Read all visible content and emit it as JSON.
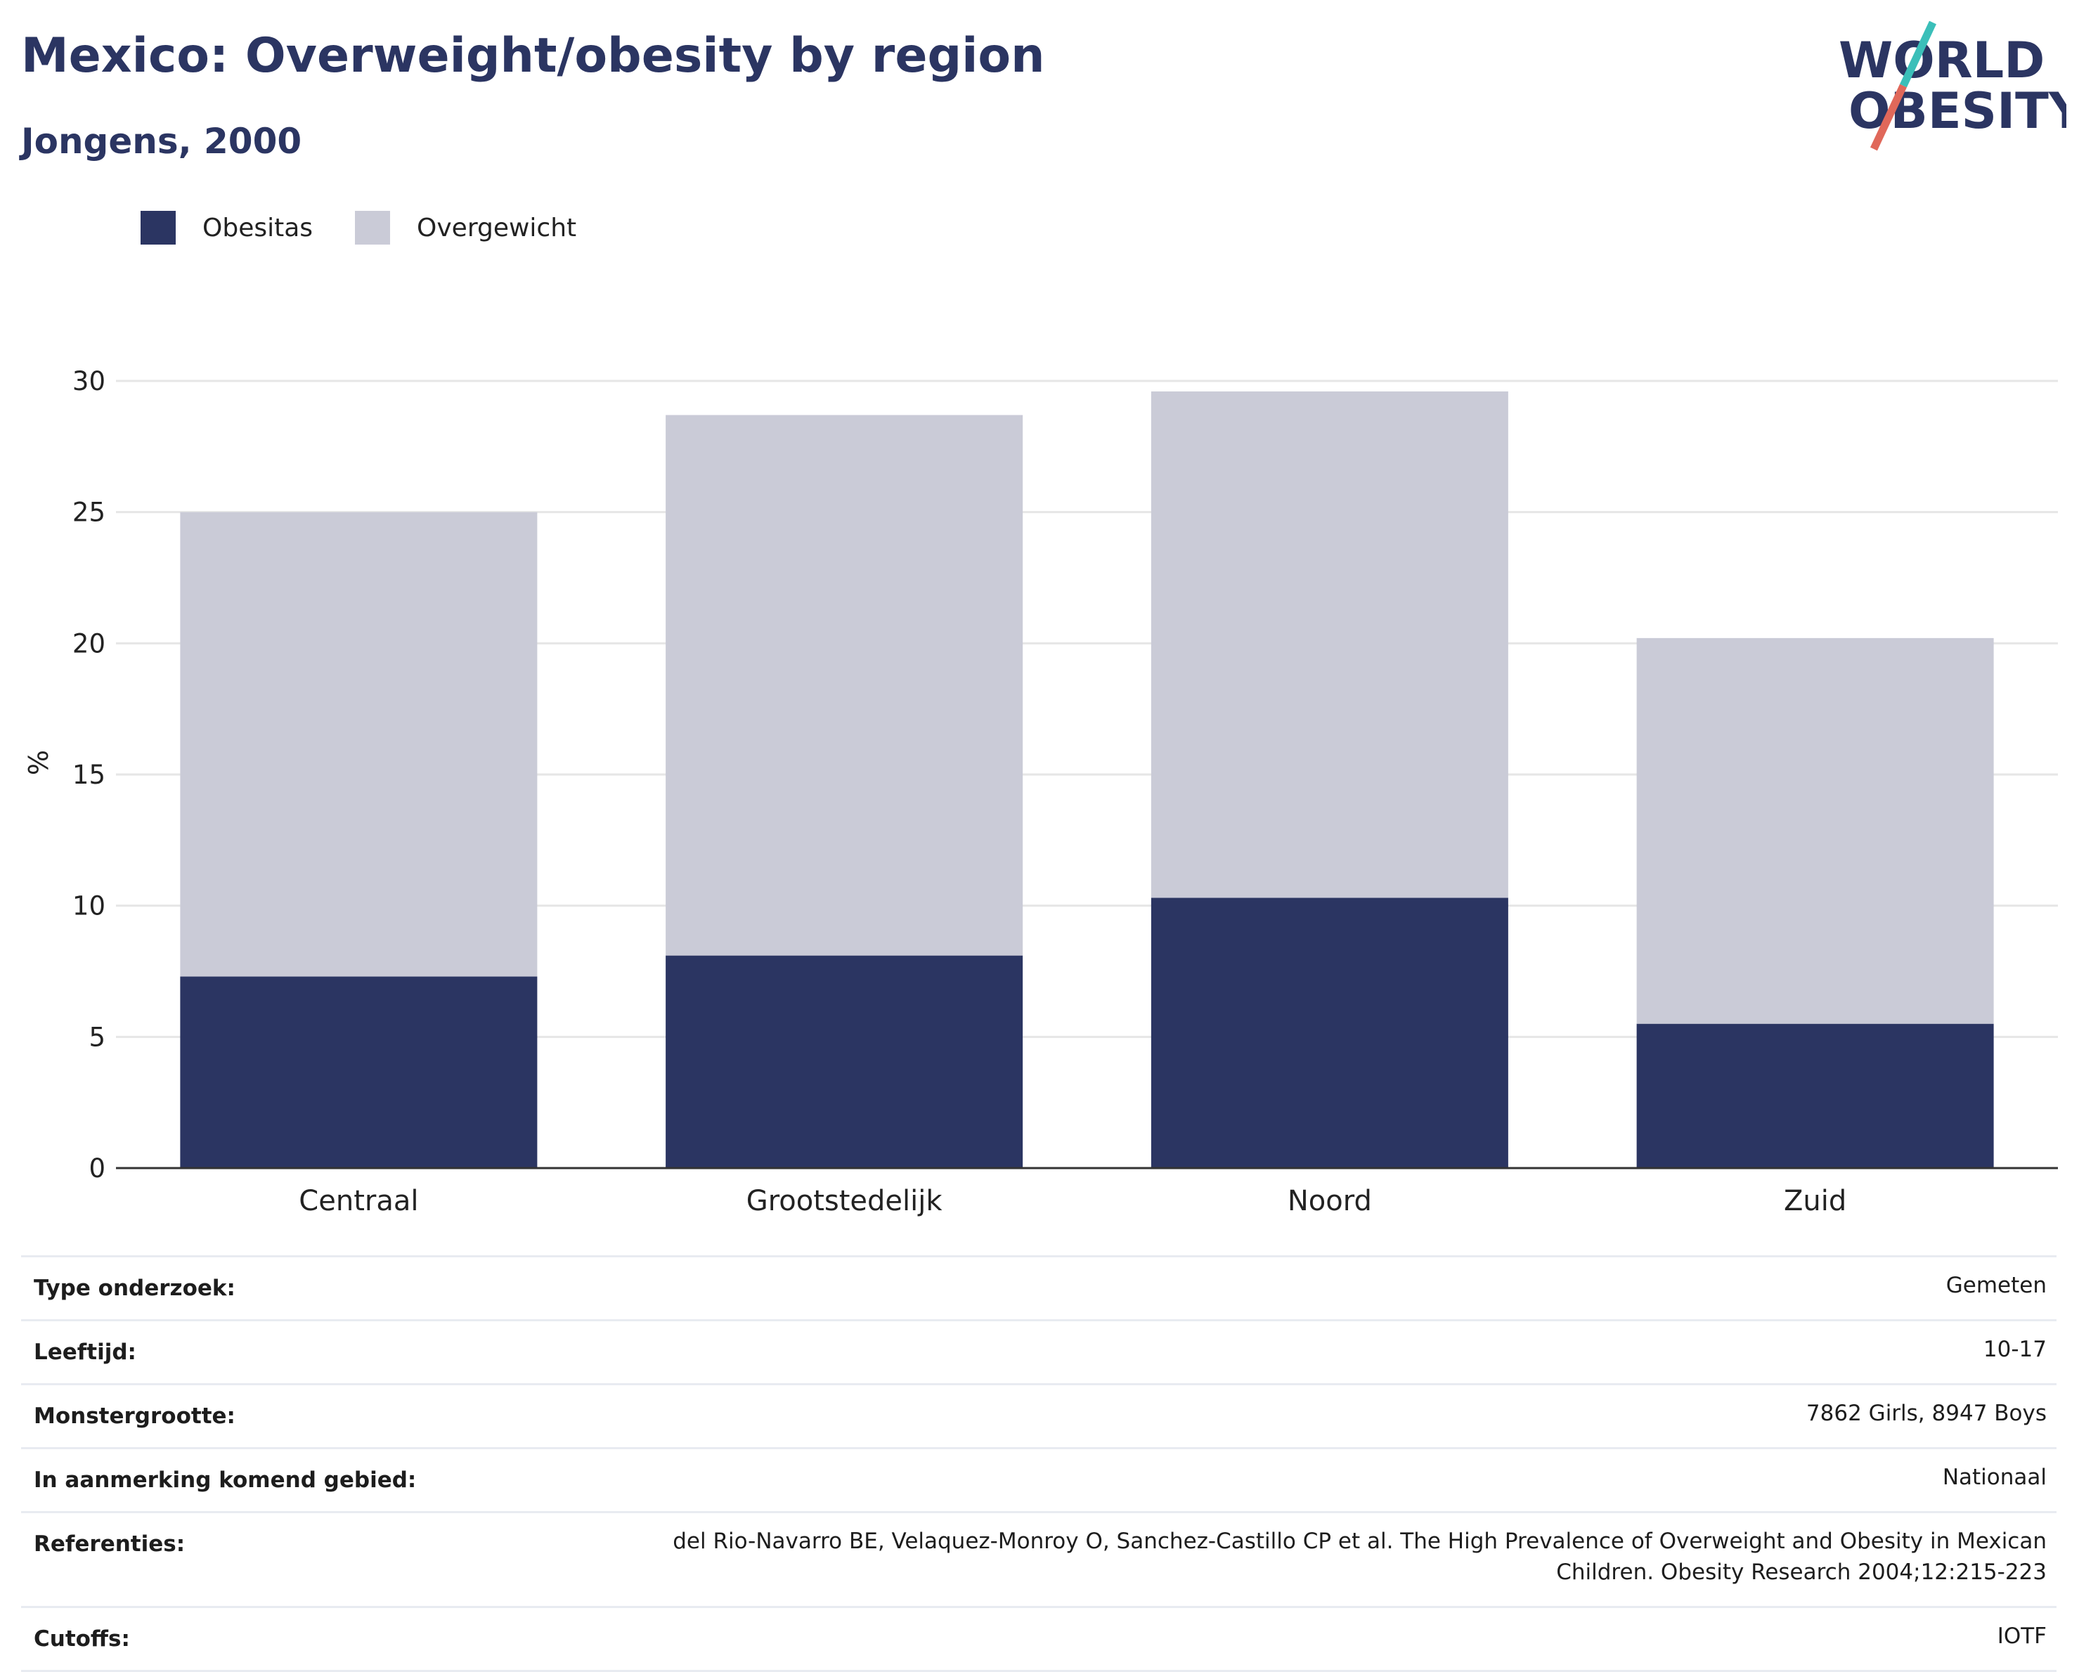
{
  "header": {
    "title": "Mexico: Overweight/obesity by region",
    "subtitle": "Jongens, 2000"
  },
  "logo": {
    "line1": "WORLD",
    "line2": "OBESITY",
    "colors": {
      "text": "#2b3562",
      "slash_top": "#3bbfb9",
      "slash_bottom": "#e0685a"
    }
  },
  "colors": {
    "obesity": "#2b3562",
    "overweight": "#cacbd7",
    "grid": "#e6e6e6",
    "axis": "#333333"
  },
  "chart_data": {
    "type": "bar",
    "stacked": true,
    "categories": [
      "Centraal",
      "Grootstedelijk",
      "Noord",
      "Zuid"
    ],
    "series": [
      {
        "name": "Obesitas",
        "values": [
          7.3,
          8.1,
          10.3,
          5.5
        ]
      },
      {
        "name": "Overgewicht",
        "values": [
          17.7,
          20.6,
          19.3,
          14.7
        ]
      }
    ],
    "ylabel": "%",
    "ylim": [
      0,
      30
    ],
    "yticks": [
      0,
      5,
      10,
      15,
      20,
      25,
      30
    ],
    "grid": true,
    "legend_position": "top-left"
  },
  "info": [
    {
      "label": "Type onderzoek:",
      "value": "Gemeten"
    },
    {
      "label": "Leeftijd:",
      "value": "10-17"
    },
    {
      "label": "Monstergrootte:",
      "value": "7862 Girls, 8947 Boys"
    },
    {
      "label": "In aanmerking komend gebied:",
      "value": "Nationaal"
    },
    {
      "label": "Referenties:",
      "value": "del Rio-Navarro BE, Velaquez-Monroy O, Sanchez-Castillo CP et al. The High Prevalence of Overweight and Obesity in Mexican Children. Obesity Research 2004;12:215-223"
    },
    {
      "label": "Cutoffs:",
      "value": "IOTF"
    }
  ]
}
